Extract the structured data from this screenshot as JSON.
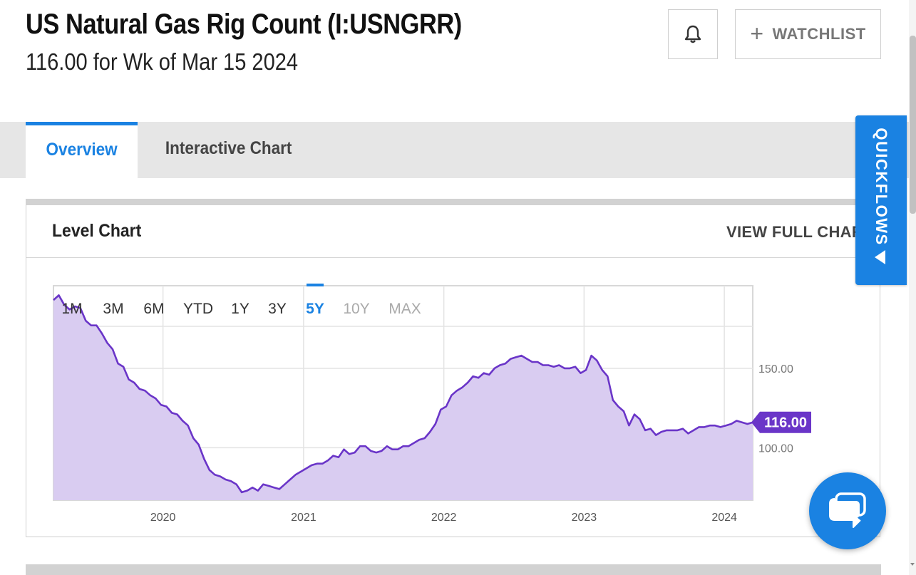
{
  "header": {
    "title": "US Natural Gas Rig Count (I:USNGRR)",
    "subtitle": "116.00 for Wk of Mar 15 2024",
    "watchlist_label": "WATCHLIST"
  },
  "tabs": [
    {
      "label": "Overview",
      "active": true
    },
    {
      "label": "Interactive Chart",
      "active": false
    }
  ],
  "card": {
    "title": "Level Chart",
    "view_full_label": "VIEW FULL CHART"
  },
  "quickflows_label": "QUICKFLOWS",
  "colors": {
    "accent": "#1a82e2",
    "series_line": "#6a35c8",
    "series_fill": "#d9ccf1",
    "value_tag": "#6a35c8"
  },
  "icons": {
    "bell": "bell-icon",
    "plus": "plus-icon",
    "quickflows_arrow": "caret-left-icon",
    "chat": "chat-icon"
  },
  "chart_data": {
    "type": "area",
    "title": "",
    "xlabel": "",
    "ylabel": "",
    "range_buttons": [
      "1M",
      "3M",
      "6M",
      "YTD",
      "1Y",
      "3Y",
      "5Y",
      "10Y",
      "MAX"
    ],
    "active_range": "5Y",
    "disabled_ranges": [
      "10Y",
      "MAX"
    ],
    "x_tick_labels": [
      "2020",
      "2021",
      "2022",
      "2023",
      "2024"
    ],
    "y_tick_labels": [
      {
        "value": 150,
        "label": "150.00"
      },
      {
        "value": 100,
        "label": "100.00"
      }
    ],
    "xlim": [
      "2019-03-22",
      "2024-03-15"
    ],
    "ylim": [
      67,
      202
    ],
    "grid": true,
    "last_value": 116,
    "last_value_label": "116.00",
    "series": [
      {
        "x": [
          "2019-03-22",
          "2019-04-05",
          "2019-04-19",
          "2019-05-03",
          "2019-05-17",
          "2019-05-31",
          "2019-06-14",
          "2019-06-28",
          "2019-07-12",
          "2019-07-26",
          "2019-08-09",
          "2019-08-23",
          "2019-09-06",
          "2019-09-20",
          "2019-10-04",
          "2019-10-18",
          "2019-11-01",
          "2019-11-15",
          "2019-11-29",
          "2019-12-13",
          "2019-12-27",
          "2020-01-10",
          "2020-01-24",
          "2020-02-07",
          "2020-02-21",
          "2020-03-06",
          "2020-03-20",
          "2020-04-03",
          "2020-04-17",
          "2020-05-01",
          "2020-05-15",
          "2020-05-29",
          "2020-06-12",
          "2020-06-26",
          "2020-07-10",
          "2020-07-24",
          "2020-08-07",
          "2020-08-21",
          "2020-09-04",
          "2020-09-18",
          "2020-10-02",
          "2020-10-16",
          "2020-10-30",
          "2020-11-13",
          "2020-11-27",
          "2020-12-11",
          "2020-12-25",
          "2021-01-08",
          "2021-01-22",
          "2021-02-05",
          "2021-02-19",
          "2021-03-05",
          "2021-03-19",
          "2021-04-02",
          "2021-04-16",
          "2021-04-30",
          "2021-05-14",
          "2021-05-28",
          "2021-06-11",
          "2021-06-25",
          "2021-07-09",
          "2021-07-23",
          "2021-08-06",
          "2021-08-20",
          "2021-09-03",
          "2021-09-17",
          "2021-10-01",
          "2021-10-15",
          "2021-10-29",
          "2021-11-12",
          "2021-11-26",
          "2021-12-10",
          "2021-12-24",
          "2022-01-07",
          "2022-01-21",
          "2022-02-04",
          "2022-02-18",
          "2022-03-04",
          "2022-03-18",
          "2022-04-01",
          "2022-04-15",
          "2022-04-29",
          "2022-05-13",
          "2022-05-27",
          "2022-06-10",
          "2022-06-24",
          "2022-07-08",
          "2022-07-22",
          "2022-08-05",
          "2022-08-19",
          "2022-09-02",
          "2022-09-16",
          "2022-09-30",
          "2022-10-14",
          "2022-10-28",
          "2022-11-11",
          "2022-11-25",
          "2022-12-09",
          "2022-12-23",
          "2023-01-06",
          "2023-01-20",
          "2023-02-03",
          "2023-02-17",
          "2023-03-03",
          "2023-03-17",
          "2023-03-31",
          "2023-04-14",
          "2023-04-28",
          "2023-05-12",
          "2023-05-26",
          "2023-06-09",
          "2023-06-23",
          "2023-07-07",
          "2023-07-21",
          "2023-08-04",
          "2023-08-18",
          "2023-09-01",
          "2023-09-15",
          "2023-09-29",
          "2023-10-13",
          "2023-10-27",
          "2023-11-10",
          "2023-11-24",
          "2023-12-08",
          "2023-12-22",
          "2024-01-05",
          "2024-01-19",
          "2024-02-02",
          "2024-02-16",
          "2024-03-01",
          "2024-03-15"
        ],
        "values": [
          193,
          196,
          190,
          187,
          189,
          188,
          180,
          177,
          177,
          172,
          166,
          162,
          153,
          151,
          143,
          141,
          137,
          136,
          133,
          131,
          127,
          126,
          122,
          121,
          117,
          114,
          106,
          102,
          93,
          86,
          83,
          82,
          80,
          79,
          77,
          72,
          73,
          75,
          73,
          77,
          76,
          75,
          74,
          77,
          80,
          83,
          85,
          87,
          89,
          90,
          90,
          92,
          95,
          94,
          99,
          96,
          97,
          101,
          101,
          98,
          97,
          98,
          101,
          99,
          99,
          101,
          101,
          103,
          105,
          106,
          110,
          115,
          124,
          126,
          133,
          136,
          138,
          141,
          145,
          144,
          147,
          146,
          150,
          152,
          153,
          156,
          157,
          158,
          156,
          154,
          154,
          152,
          152,
          151,
          152,
          150,
          150,
          151,
          147,
          149,
          158,
          155,
          149,
          145,
          130,
          126,
          123,
          114,
          121,
          118,
          111,
          112,
          108,
          110,
          111,
          111,
          111,
          112,
          109,
          111,
          113,
          113,
          114,
          114,
          113,
          114,
          115,
          117,
          116,
          115,
          116
        ]
      }
    ]
  }
}
